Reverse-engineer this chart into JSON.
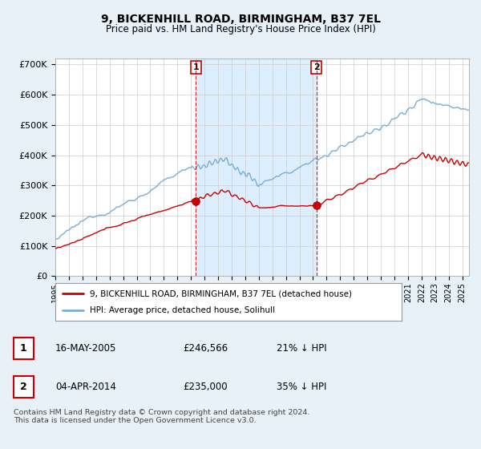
{
  "title": "9, BICKENHILL ROAD, BIRMINGHAM, B37 7EL",
  "subtitle": "Price paid vs. HM Land Registry's House Price Index (HPI)",
  "ylabel_ticks": [
    "£0",
    "£100K",
    "£200K",
    "£300K",
    "£400K",
    "£500K",
    "£600K",
    "£700K"
  ],
  "ytick_vals": [
    0,
    100000,
    200000,
    300000,
    400000,
    500000,
    600000,
    700000
  ],
  "ylim": [
    0,
    720000
  ],
  "xlim_start": 1995.0,
  "xlim_end": 2025.5,
  "hpi_color": "#7aadd4",
  "price_color": "#cc0000",
  "transaction1_date": 2005.37,
  "transaction1_price": 246566,
  "transaction2_date": 2014.25,
  "transaction2_price": 235000,
  "shade_color": "#ddeeff",
  "legend_label1": "9, BICKENHILL ROAD, BIRMINGHAM, B37 7EL (detached house)",
  "legend_label2": "HPI: Average price, detached house, Solihull",
  "table_row1": [
    "1",
    "16-MAY-2005",
    "£246,566",
    "21% ↓ HPI"
  ],
  "table_row2": [
    "2",
    "04-APR-2014",
    "£235,000",
    "35% ↓ HPI"
  ],
  "footnote": "Contains HM Land Registry data © Crown copyright and database right 2024.\nThis data is licensed under the Open Government Licence v3.0.",
  "background_color": "#e8f0f8",
  "plot_bg_color": "#ffffff",
  "grid_color": "#cccccc"
}
